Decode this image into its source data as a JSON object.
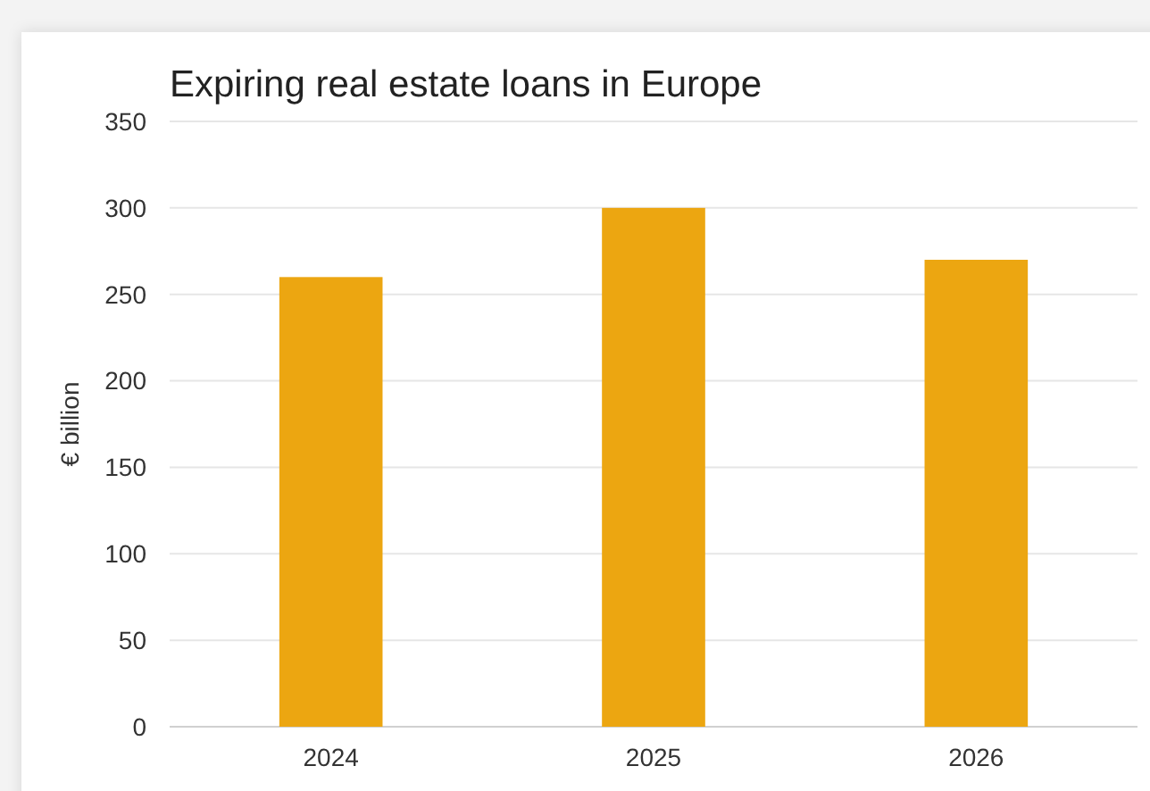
{
  "chart_data": {
    "type": "bar",
    "title": "Expiring real estate loans in Europe",
    "ylabel": "€ billion",
    "categories": [
      "2024",
      "2025",
      "2026"
    ],
    "values": [
      260,
      300,
      270
    ],
    "color": "#eca611",
    "ylim": [
      0,
      350
    ],
    "yticks": [
      0,
      50,
      100,
      150,
      200,
      250,
      300,
      350
    ],
    "grid": "y"
  }
}
